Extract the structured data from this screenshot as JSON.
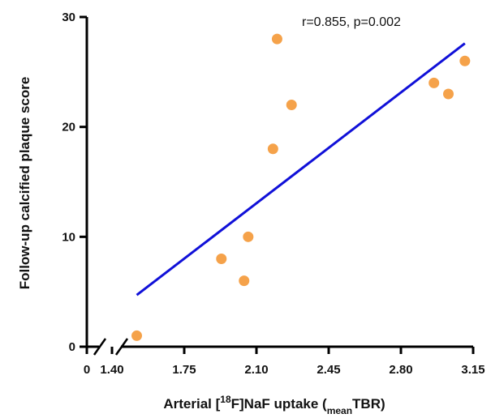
{
  "chart_data": {
    "type": "scatter",
    "xlabel": {
      "prefix": "Arterial [",
      "sup": "18",
      "mid": "F]NaF uptake (",
      "sub": "mean",
      "suffix": "TBR)"
    },
    "ylabel": "Follow-up calcified plaque score",
    "annotation": "r=0.855, p=0.002",
    "x_ticks": [
      {
        "value": 0,
        "label": "0"
      },
      {
        "value": 1.4,
        "label": "1.40"
      },
      {
        "value": 1.75,
        "label": "1.75"
      },
      {
        "value": 2.1,
        "label": "2.10"
      },
      {
        "value": 2.45,
        "label": "2.45"
      },
      {
        "value": 2.8,
        "label": "2.80"
      },
      {
        "value": 3.15,
        "label": "3.15"
      }
    ],
    "y_ticks": [
      {
        "value": 0,
        "label": "0"
      },
      {
        "value": 10,
        "label": "10"
      },
      {
        "value": 20,
        "label": "20"
      },
      {
        "value": 30,
        "label": "30"
      }
    ],
    "xlim": [
      1.4,
      3.15
    ],
    "ylim": [
      0,
      30
    ],
    "x_axis_break": true,
    "grid": false,
    "points": [
      {
        "x": 1.52,
        "y": 1
      },
      {
        "x": 1.93,
        "y": 8
      },
      {
        "x": 2.04,
        "y": 6
      },
      {
        "x": 2.06,
        "y": 10
      },
      {
        "x": 2.18,
        "y": 18
      },
      {
        "x": 2.2,
        "y": 28
      },
      {
        "x": 2.27,
        "y": 22
      },
      {
        "x": 2.96,
        "y": 24
      },
      {
        "x": 3.03,
        "y": 23
      },
      {
        "x": 3.11,
        "y": 26
      }
    ],
    "regression_line": {
      "x1": 1.52,
      "y1": 4.7,
      "x2": 3.11,
      "y2": 27.6
    },
    "colors": {
      "point": "#f5a24a",
      "line": "#1010d8",
      "axis": "#000000"
    }
  }
}
